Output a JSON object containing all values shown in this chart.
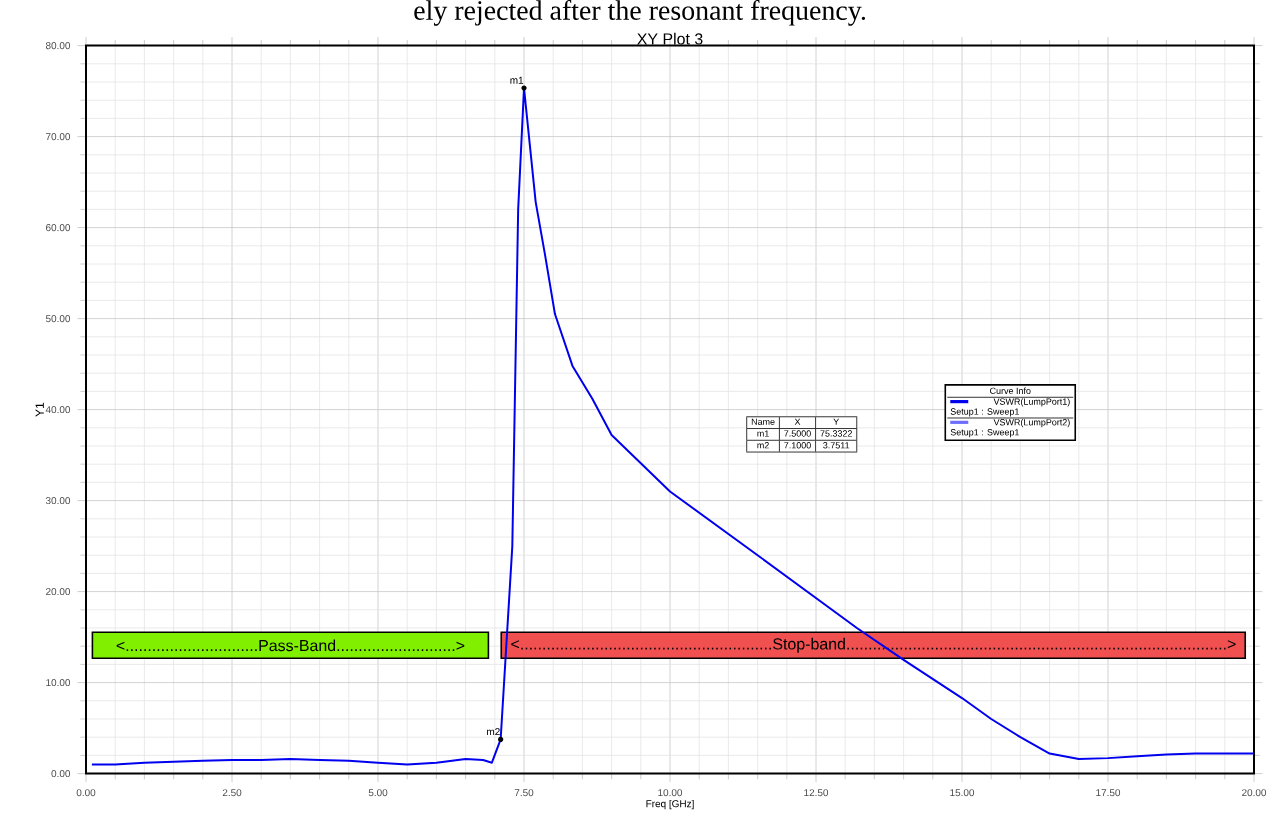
{
  "chart_data": {
    "type": "line",
    "title": "XY Plot 3",
    "xlabel": "Freq [GHz]",
    "ylabel": "Y1",
    "legend_title": "Curve Info",
    "x": [
      0.1,
      0.5,
      1,
      1.5,
      2,
      2.5,
      3,
      3.5,
      4,
      4.5,
      5,
      5.5,
      6,
      6.5,
      6.8,
      6.95,
      7.1,
      7.3,
      7.4,
      7.5,
      7.7,
      7.86,
      8.03,
      8.33,
      8.67,
      9.0,
      10.0,
      11.5,
      13.2,
      14.0,
      15.0,
      15.5,
      16.0,
      16.5,
      17.0,
      17.5,
      18.0,
      18.5,
      19.0,
      20.0
    ],
    "series": [
      {
        "name": "VSWR(LumpPort1) Setup1 : Sweep1",
        "color": "#0000ee",
        "values": [
          1.0,
          1.0,
          1.2,
          1.3,
          1.4,
          1.5,
          1.5,
          1.6,
          1.5,
          1.4,
          1.2,
          1.0,
          1.2,
          1.6,
          1.5,
          1.2,
          3.7511,
          25,
          62,
          75.3322,
          62.8,
          57,
          50.5,
          44.8,
          41.2,
          37.2,
          31,
          24,
          16,
          12.5,
          8.3,
          6,
          4,
          2.2,
          1.6,
          1.7,
          1.9,
          2.1,
          2.2,
          2.2
        ]
      },
      {
        "name": "VSWR(LumpPort2) Setup1 : Sweep1",
        "color": "#6f6fff",
        "values": [
          null,
          null,
          null,
          null,
          null,
          null,
          null,
          null,
          null,
          null,
          null,
          null,
          null,
          null,
          null,
          null,
          null,
          null,
          null,
          null,
          null,
          null,
          null,
          null,
          null,
          null,
          null,
          null,
          null,
          null,
          null,
          null,
          null,
          null,
          null,
          null,
          null,
          null,
          null,
          null
        ]
      }
    ],
    "xlim": [
      0,
      20
    ],
    "ylim": [
      0,
      80
    ],
    "xticks": [
      {
        "value": 0,
        "label": "0.00"
      },
      {
        "value": 2.5,
        "label": "2.50"
      },
      {
        "value": 5,
        "label": "5.00"
      },
      {
        "value": 7.5,
        "label": "7.50"
      },
      {
        "value": 10,
        "label": "10.00"
      },
      {
        "value": 12.5,
        "label": "12.50"
      },
      {
        "value": 15,
        "label": "15.00"
      },
      {
        "value": 17.5,
        "label": "17.50"
      },
      {
        "value": 20,
        "label": "20.00"
      }
    ],
    "yticks": [
      {
        "value": 0,
        "label": "0.00"
      },
      {
        "value": 10,
        "label": "10.00"
      },
      {
        "value": 20,
        "label": "20.00"
      },
      {
        "value": 30,
        "label": "30.00"
      },
      {
        "value": 40,
        "label": "40.00"
      },
      {
        "value": 50,
        "label": "50.00"
      },
      {
        "value": 60,
        "label": "60.00"
      },
      {
        "value": 70,
        "label": "70.00"
      },
      {
        "value": 80,
        "label": "80.00"
      }
    ],
    "grid": true,
    "legend": "right",
    "marker": "none",
    "line_style": "solid",
    "annotations": [
      "ely rejected after the resonant frequency.",
      "<..............................Pass-Band...........................>",
      "<.........................................................Stop-band......................................................................................>",
      {
        "text": "m1",
        "x": 7.5,
        "y": 75.3322
      },
      {
        "text": "m2",
        "x": 7.1,
        "y": 3.7511
      },
      "Name",
      "X",
      "Y",
      "m1",
      "7.5000",
      "75.3322",
      "m2",
      "7.1000",
      "3.7511"
    ]
  }
}
